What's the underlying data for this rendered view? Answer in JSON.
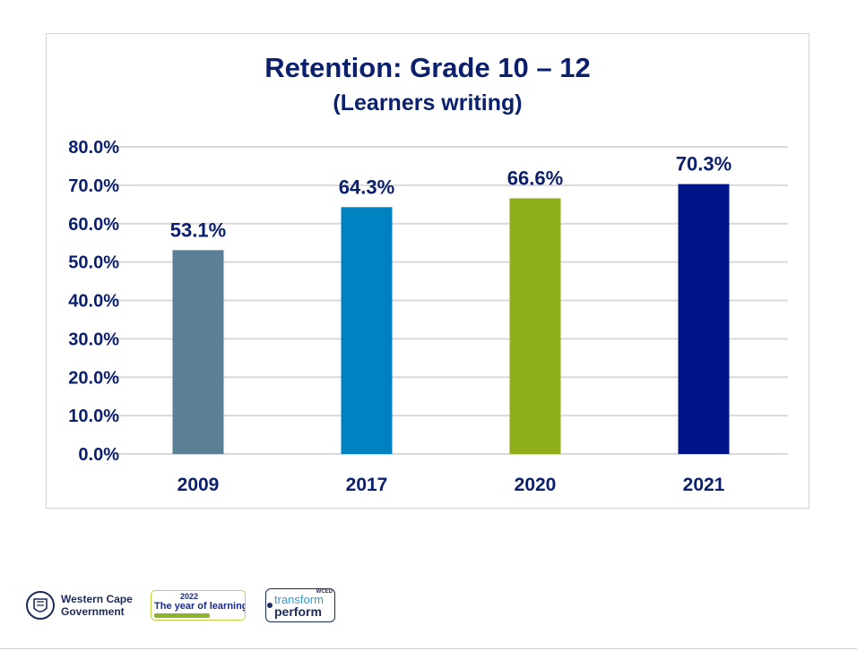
{
  "chart_data": {
    "type": "bar",
    "title": "Retention: Grade 10 – 12",
    "subtitle": "(Learners writing)",
    "categories": [
      "2009",
      "2017",
      "2020",
      "2021"
    ],
    "values": [
      53.1,
      64.3,
      66.6,
      70.3
    ],
    "data_labels": [
      "53.1%",
      "64.3%",
      "66.6%",
      "70.3%"
    ],
    "bar_colors": [
      "#5b7f95",
      "#0081c2",
      "#8fae1b",
      "#001489"
    ],
    "ylim": [
      0,
      80
    ],
    "yticks": [
      0,
      10,
      20,
      30,
      40,
      50,
      60,
      70,
      80
    ],
    "ytick_labels": [
      "0.0%",
      "10.0%",
      "20.0%",
      "30.0%",
      "40.0%",
      "50.0%",
      "60.0%",
      "70.0%",
      "80.0%"
    ],
    "xlabel": "",
    "ylabel": "",
    "grid": true,
    "text_color": "#0a1f6e",
    "grid_color": "#d9d9d9"
  },
  "footer": {
    "wcg_line1": "Western Cape",
    "wcg_line2": "Government",
    "yol_year": "2022",
    "yol_text": "The year of learning",
    "tp_tag": "WCED",
    "tp_line1": "transform",
    "tp_line2": "perform"
  }
}
